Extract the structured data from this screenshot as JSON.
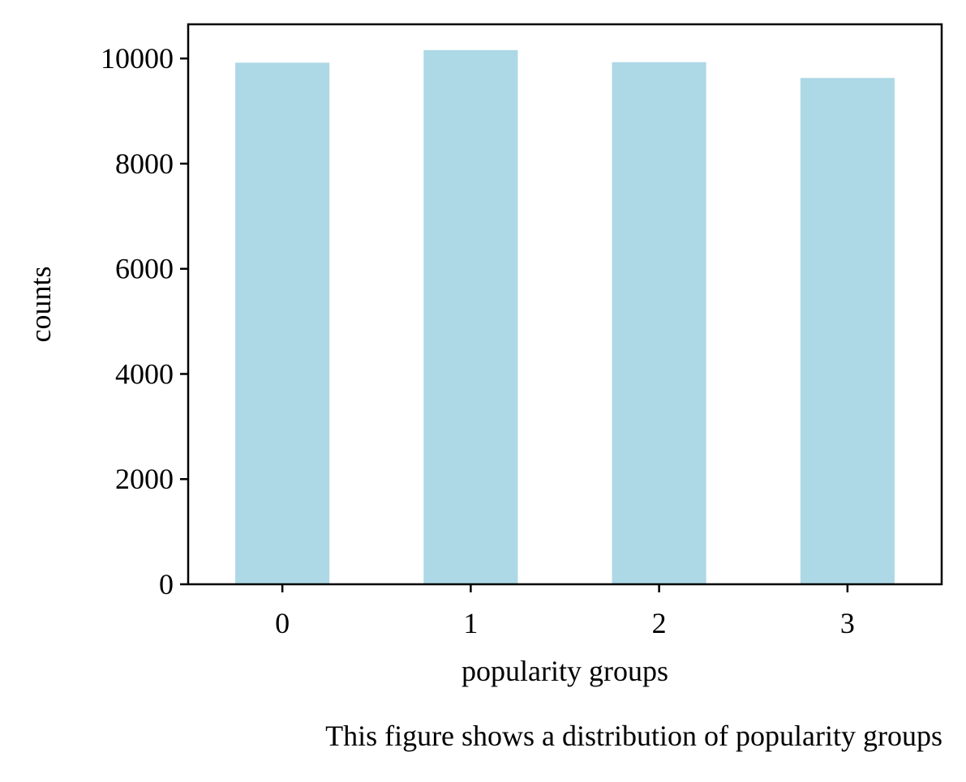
{
  "chart_data": {
    "type": "bar",
    "title": "",
    "categories": [
      "0",
      "1",
      "2",
      "3"
    ],
    "values": [
      9920,
      10160,
      9930,
      9630
    ],
    "xlabel": "popularity groups",
    "ylabel": "counts",
    "ylim": [
      0,
      10650
    ],
    "yticks": [
      0,
      2000,
      4000,
      6000,
      8000,
      10000
    ],
    "xticks": [
      "0",
      "1",
      "2",
      "3"
    ],
    "bar_color": "#add8e6",
    "grid": false,
    "legend": "none"
  },
  "caption": "This figure shows a distribution of popularity groups"
}
